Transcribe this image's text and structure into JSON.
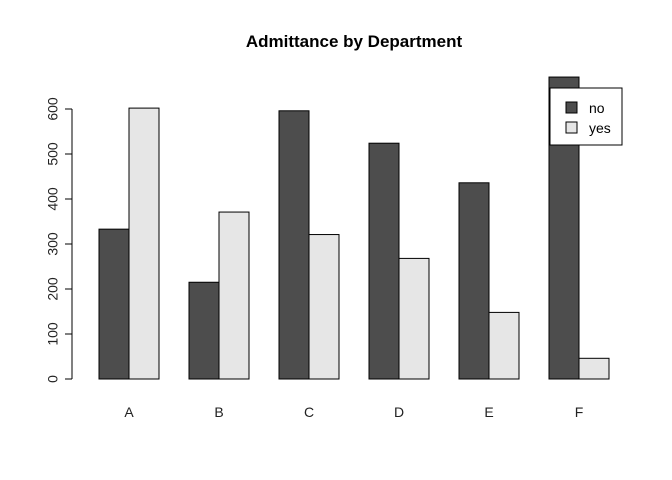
{
  "chart_data": {
    "type": "bar",
    "title": "Admittance by Department",
    "xlabel": "",
    "ylabel": "",
    "categories": [
      "A",
      "B",
      "C",
      "D",
      "E",
      "F"
    ],
    "series": [
      {
        "name": "no",
        "color": "#4d4d4d",
        "values": [
          333,
          215,
          596,
          524,
          436,
          671
        ]
      },
      {
        "name": "yes",
        "color": "#e6e6e6",
        "values": [
          602,
          371,
          321,
          268,
          148,
          46
        ]
      }
    ],
    "yticks": [
      0,
      100,
      200,
      300,
      400,
      500,
      600
    ],
    "ylim": [
      0,
      671
    ],
    "grid": false,
    "legend_position": "top-right"
  }
}
